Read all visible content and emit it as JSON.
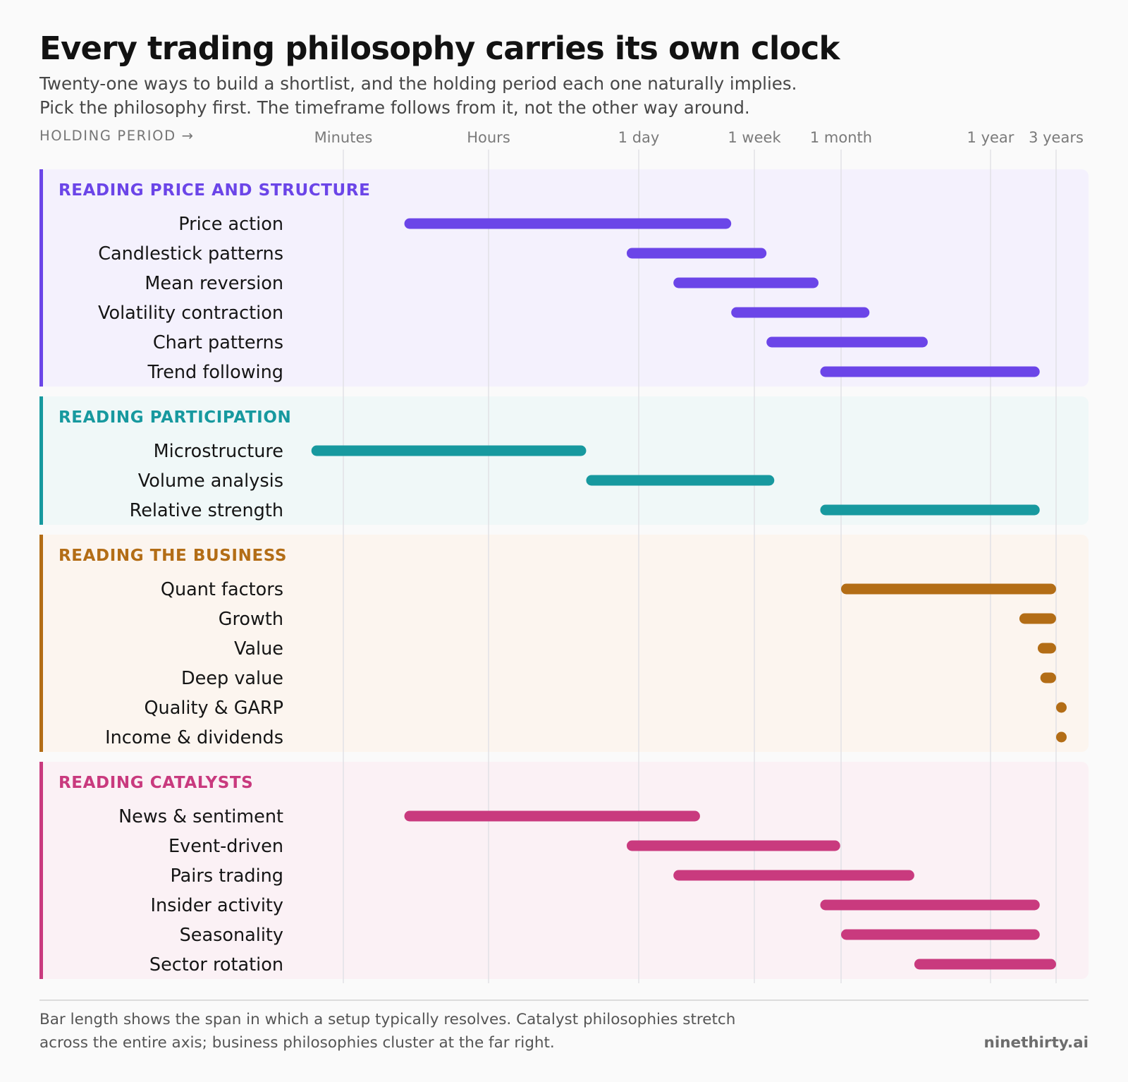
{
  "header": {
    "title": "Every trading philosophy carries its own clock",
    "subtitle_line1": "Twenty-one ways to build a shortlist, and the holding period each one naturally implies.",
    "subtitle_line2": "Pick the philosophy first. The timeframe follows from it, not the other way around.",
    "axis_title": "HOLDING PERIOD →"
  },
  "footer": {
    "note_line1": "Bar length shows the span in which a setup typically resolves. Catalyst philosophies stretch",
    "note_line2": "across the entire axis; business philosophies cluster at the far right.",
    "brand": "ninethirty.ai"
  },
  "chart_data": {
    "type": "range-bar",
    "axis_scale": "ordinal (nonlinear holding period)",
    "axis_ticks": [
      "Minutes",
      "Hours",
      "1 day",
      "1 week",
      "1 month",
      "1 year",
      "3 years"
    ],
    "grid": true,
    "groups": [
      {
        "name": "READING PRICE AND STRUCTURE",
        "color": "#6b45e8",
        "bg": "#f4f1fd",
        "items": [
          {
            "label": "Price action",
            "start": 0.42,
            "end": 2.8
          },
          {
            "label": "Candlestick patterns",
            "start": 1.92,
            "end": 3.14
          },
          {
            "label": "Mean reversion",
            "start": 2.3,
            "end": 3.74
          },
          {
            "label": "Volatility contraction",
            "start": 2.8,
            "end": 4.19
          },
          {
            "label": "Chart patterns",
            "start": 3.14,
            "end": 4.58
          },
          {
            "label": "Trend following",
            "start": 3.76,
            "end": 5.75
          }
        ]
      },
      {
        "name": "READING PARTICIPATION",
        "color": "#17999f",
        "bg": "#f0f8f8",
        "items": [
          {
            "label": "Microstructure",
            "start": -0.22,
            "end": 1.65
          },
          {
            "label": "Volume analysis",
            "start": 1.65,
            "end": 3.23
          },
          {
            "label": "Relative strength",
            "start": 3.76,
            "end": 5.75
          }
        ]
      },
      {
        "name": "READING THE BUSINESS",
        "color": "#b36d16",
        "bg": "#fcf5ef",
        "items": [
          {
            "label": "Quant factors",
            "start": 4.0,
            "end": 6.03
          },
          {
            "label": "Growth",
            "start": 5.44,
            "end": 6.66
          },
          {
            "label": "Value",
            "start": 5.72,
            "end": 7.0
          },
          {
            "label": "Deep value",
            "start": 5.76,
            "end": 7.0
          },
          {
            "label": "Quality & GARP",
            "start": 6.0,
            "end": 7.0
          },
          {
            "label": "Income & dividends",
            "start": 6.0,
            "end": 7.0
          }
        ]
      },
      {
        "name": "READING CATALYSTS",
        "color": "#c93a7e",
        "bg": "#fbf1f5",
        "items": [
          {
            "label": "News & sentiment",
            "start": 0.42,
            "end": 2.53
          },
          {
            "label": "Event-driven",
            "start": 1.92,
            "end": 3.99
          },
          {
            "label": "Pairs trading",
            "start": 2.3,
            "end": 4.49
          },
          {
            "label": "Insider activity",
            "start": 3.76,
            "end": 5.75
          },
          {
            "label": "Seasonality",
            "start": 4.0,
            "end": 5.75
          },
          {
            "label": "Sector rotation",
            "start": 4.49,
            "end": 6.03
          }
        ]
      }
    ]
  }
}
